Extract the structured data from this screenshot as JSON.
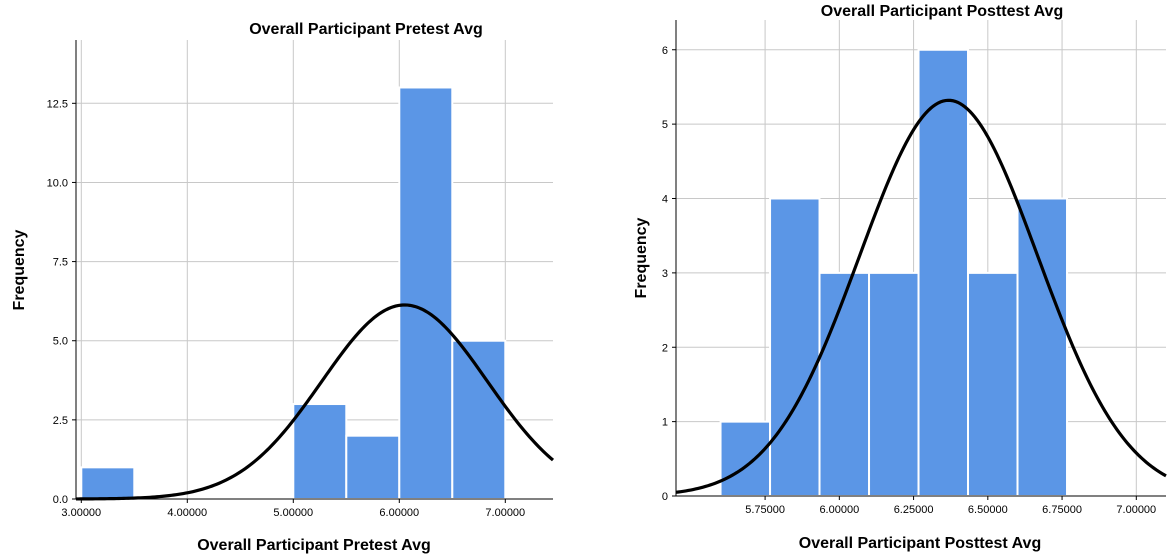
{
  "colors": {
    "bar": "#5b96e6",
    "curve": "#000000",
    "grid": "#c8c8c8"
  },
  "chart_data": [
    {
      "type": "bar",
      "title": "Overall Participant Pretest Avg",
      "xlabel": "Overall Participant Pretest Avg",
      "ylabel": "Frequency",
      "xlim": [
        2.95,
        7.45
      ],
      "ylim": [
        0,
        14.5
      ],
      "xticks": [
        3.0,
        4.0,
        5.0,
        6.0,
        7.0
      ],
      "xtick_labels": [
        "3.00000",
        "4.00000",
        "5.00000",
        "6.00000",
        "7.00000"
      ],
      "yticks": [
        0,
        2.5,
        5,
        7.5,
        10,
        12.5
      ],
      "ytick_labels": [
        "0.0",
        "2.5",
        "5.0",
        "7.5",
        "10.0",
        "12.5"
      ],
      "bins": [
        {
          "start": 3.0,
          "end": 3.5,
          "count": 1
        },
        {
          "start": 5.0,
          "end": 5.5,
          "count": 3
        },
        {
          "start": 5.5,
          "end": 6.0,
          "count": 2
        },
        {
          "start": 6.0,
          "end": 6.5,
          "count": 13
        },
        {
          "start": 6.5,
          "end": 7.0,
          "count": 5
        }
      ],
      "normal_curve": {
        "mean": 6.05,
        "sd": 0.781,
        "n": 24,
        "bin_width": 0.5
      },
      "grid": true
    },
    {
      "type": "bar",
      "title": "Overall Participant Posttest Avg",
      "xlabel": "Overall Participant Posttest Avg",
      "ylabel": "Frequency",
      "xlim": [
        5.45,
        7.1
      ],
      "ylim": [
        0,
        6.4
      ],
      "xticks": [
        5.75,
        6.0,
        6.25,
        6.5,
        6.75,
        7.0
      ],
      "xtick_labels": [
        "5.75000",
        "6.00000",
        "6.25000",
        "6.50000",
        "6.75000",
        "7.00000"
      ],
      "yticks": [
        0,
        1,
        2,
        3,
        4,
        5,
        6
      ],
      "ytick_labels": [
        "0",
        "1",
        "2",
        "3",
        "4",
        "5",
        "6"
      ],
      "bins": [
        {
          "start": 5.6,
          "end": 5.7667,
          "count": 1
        },
        {
          "start": 5.7667,
          "end": 5.9333,
          "count": 4
        },
        {
          "start": 5.9333,
          "end": 6.1,
          "count": 3
        },
        {
          "start": 6.1,
          "end": 6.2667,
          "count": 3
        },
        {
          "start": 6.2667,
          "end": 6.4333,
          "count": 6
        },
        {
          "start": 6.4333,
          "end": 6.6,
          "count": 3
        },
        {
          "start": 6.6,
          "end": 6.7667,
          "count": 4
        }
      ],
      "normal_curve": {
        "mean": 6.368,
        "sd": 0.3,
        "n": 24,
        "bin_width": 0.1667
      },
      "grid": true
    }
  ]
}
